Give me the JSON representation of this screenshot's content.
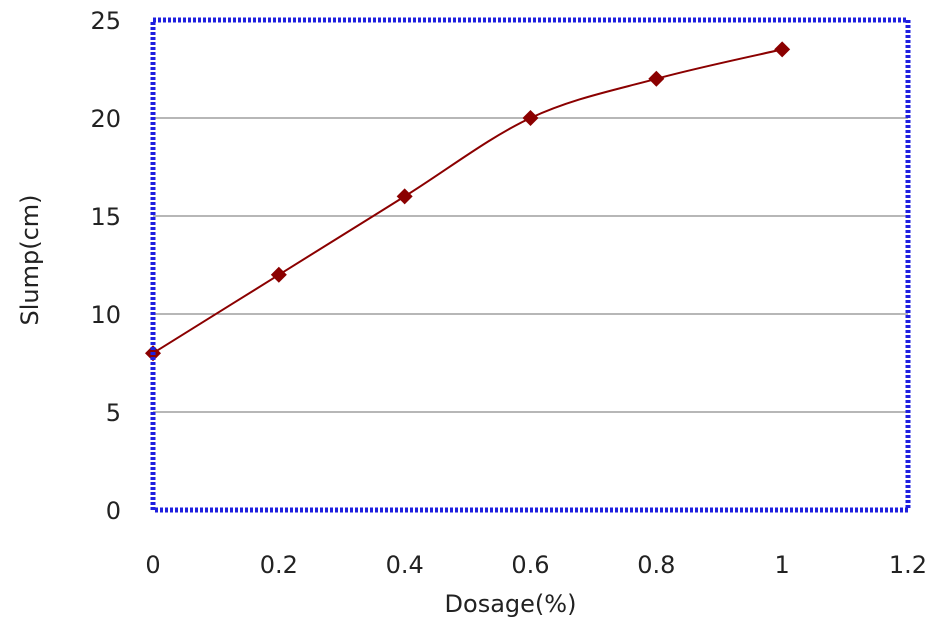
{
  "chart_data": {
    "type": "line",
    "title": "",
    "xlabel": "Dosage(%)",
    "ylabel": "Slump(cm)",
    "xlim": [
      0,
      1.2
    ],
    "ylim": [
      0,
      25
    ],
    "xticks": [
      0,
      0.2,
      0.4,
      0.6,
      0.8,
      1,
      1.2
    ],
    "yticks": [
      0,
      5,
      10,
      15,
      20,
      25
    ],
    "xtick_labels": [
      "0",
      "0.2",
      "0.4",
      "0.6",
      "0.8",
      "1",
      "1.2"
    ],
    "ytick_labels": [
      "0",
      "5",
      "10",
      "15",
      "20",
      "25"
    ],
    "grid": "horizontal",
    "legend": "none",
    "smooth": true,
    "marker": "diamond",
    "series": [
      {
        "x": [
          0,
          0.2,
          0.4,
          0.6,
          0.8,
          1.0
        ],
        "y": [
          8,
          12,
          16,
          20,
          22,
          23.5
        ],
        "color": "#8b0000"
      }
    ],
    "frame_color": "#1f1fdf"
  }
}
